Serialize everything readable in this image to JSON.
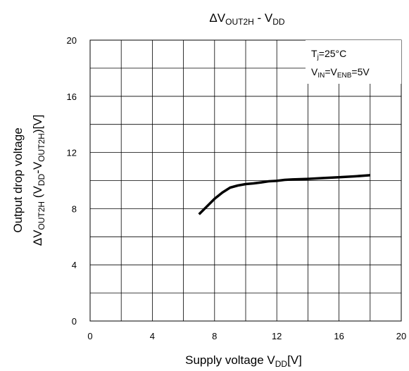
{
  "chart_data": {
    "type": "line",
    "title": {
      "pre": "ΔV",
      "sub1": "OUT2H",
      "mid": " - V",
      "sub2": "DD"
    },
    "xlabel": {
      "pre": "Supply voltage V",
      "sub": "DD",
      "post": "[V]"
    },
    "ylabel": {
      "line1": "Output drop voltage",
      "line2": {
        "a": "ΔV",
        "b": "OUT2H",
        "c": " (V",
        "d": "DD",
        "e": "-V",
        "f": "OUT2H",
        "g": ")[V]"
      }
    },
    "xlim": [
      0,
      20
    ],
    "ylim": [
      0,
      20
    ],
    "x_ticks": [
      0,
      4,
      8,
      12,
      16,
      20
    ],
    "y_ticks": [
      0,
      4,
      8,
      12,
      16,
      20
    ],
    "grid": true,
    "annotation": {
      "line1": {
        "a": "T",
        "b": "j",
        "c": "=25°C"
      },
      "line2": {
        "a": "V",
        "b": "IN",
        "c": "=V",
        "d": "ENB",
        "e": "=5V"
      }
    },
    "series": [
      {
        "x": [
          7.0,
          7.5,
          8.0,
          8.5,
          9.0,
          9.5,
          10.0,
          10.5,
          11.0,
          11.5,
          12.0,
          12.5,
          13.0,
          14.0,
          15.0,
          16.0,
          17.0,
          18.0
        ],
        "values": [
          7.6,
          8.15,
          8.7,
          9.15,
          9.5,
          9.65,
          9.75,
          9.8,
          9.87,
          9.95,
          9.98,
          10.05,
          10.08,
          10.12,
          10.18,
          10.24,
          10.3,
          10.38
        ]
      }
    ]
  }
}
